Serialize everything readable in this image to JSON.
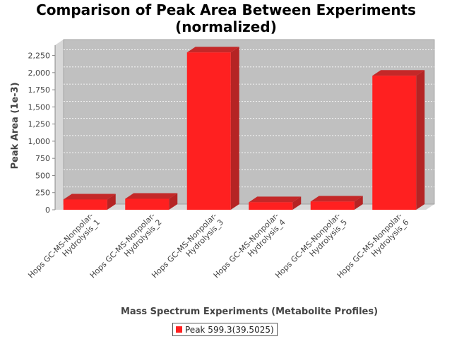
{
  "chart_data": {
    "type": "bar",
    "title": [
      "Comparison of Peak Area Between Experiments",
      "(normalized)"
    ],
    "xlabel": "Mass Spectrum Experiments (Metabolite Profiles)",
    "ylabel": "Peak Area (1e-3)",
    "ylim": [
      0,
      2400
    ],
    "yticks": [
      0,
      250,
      500,
      750,
      1000,
      1250,
      1500,
      1750,
      2000,
      2250
    ],
    "ytick_labels": [
      "0",
      "250",
      "500",
      "750",
      "1,000",
      "1,250",
      "1,500",
      "1,750",
      "2,000",
      "2,250"
    ],
    "categories": [
      [
        "Hops GC-MS-Nonpolar-",
        "Hydrolysis_1"
      ],
      [
        "Hops GC-MS-Nonpolar-",
        "Hydrolysis_2"
      ],
      [
        "Hops GC-MS-Nonpolar-",
        "Hydrolysis_3"
      ],
      [
        "Hops GC-MS-Nonpolar-",
        "Hydrolysis_4"
      ],
      [
        "Hops GC-MS-Nonpolar-",
        "Hydrolysis_5"
      ],
      [
        "Hops GC-MS-Nonpolar-",
        "Hydrolysis_6"
      ]
    ],
    "series": [
      {
        "name": "Peak 599.3(39.5025)",
        "color": "#ff2020",
        "values": [
          150,
          160,
          2295,
          110,
          120,
          1955
        ]
      }
    ],
    "grid": true,
    "legend_position": "bottom-center",
    "style": "3d-bar"
  }
}
